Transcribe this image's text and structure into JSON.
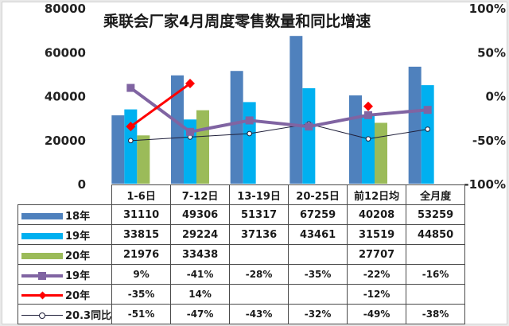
{
  "chart_data": {
    "type": "bar",
    "title": "乘联会厂家4月周度零售数量和同比增速",
    "categories": [
      "1-6日",
      "7-12日",
      "13-19日",
      "20-25日",
      "前12日均",
      "全月度"
    ],
    "left_axis": {
      "ticks": [
        "80000",
        "60000",
        "40000",
        "20000",
        "0"
      ],
      "range": [
        0,
        80000
      ]
    },
    "right_axis": {
      "ticks": [
        "100%",
        "50%",
        "0%",
        "-50%",
        "-100%"
      ],
      "range": [
        -100,
        100
      ]
    },
    "bar_series": [
      {
        "name": "18年",
        "color": "#4f81bd",
        "values": [
          31110,
          49306,
          51317,
          67259,
          40208,
          53259
        ]
      },
      {
        "name": "19年",
        "color": "#00b0f0",
        "values": [
          33815,
          29224,
          37136,
          43461,
          31519,
          44850
        ]
      },
      {
        "name": "20年",
        "color": "#9bbb59",
        "values": [
          21976,
          33438,
          null,
          null,
          27707,
          null
        ]
      }
    ],
    "line_series": [
      {
        "name": "19年",
        "color": "#8064a2",
        "marker": "square",
        "values": [
          9,
          -41,
          -28,
          -35,
          -22,
          -16
        ]
      },
      {
        "name": "20年",
        "color": "#ff0000",
        "marker": "diamond",
        "values": [
          -35,
          14,
          null,
          null,
          -12,
          null
        ]
      },
      {
        "name": "20.3同比",
        "color": "#1f1f3a",
        "marker": "circle",
        "values": [
          -51,
          -47,
          -43,
          -32,
          -49,
          -38
        ]
      }
    ],
    "legend_position": "table",
    "grid": false
  },
  "table": {
    "header": [
      "1-6日",
      "7-12日",
      "13-19日",
      "20-25日",
      "前12日均",
      "全月度"
    ],
    "rows": [
      {
        "label": "18年",
        "cells": [
          "31110",
          "49306",
          "51317",
          "67259",
          "40208",
          "53259"
        ]
      },
      {
        "label": "19年",
        "cells": [
          "33815",
          "29224",
          "37136",
          "43461",
          "31519",
          "44850"
        ]
      },
      {
        "label": "20年",
        "cells": [
          "21976",
          "33438",
          "",
          "",
          "27707",
          ""
        ]
      },
      {
        "label": "19年",
        "cells": [
          "9%",
          "-41%",
          "-28%",
          "-35%",
          "-22%",
          "-16%"
        ]
      },
      {
        "label": "20年",
        "cells": [
          "-35%",
          "14%",
          "",
          "",
          "-12%",
          ""
        ]
      },
      {
        "label": "20.3同比",
        "cells": [
          "-51%",
          "-47%",
          "-43%",
          "-32%",
          "-49%",
          "-38%"
        ]
      }
    ]
  }
}
